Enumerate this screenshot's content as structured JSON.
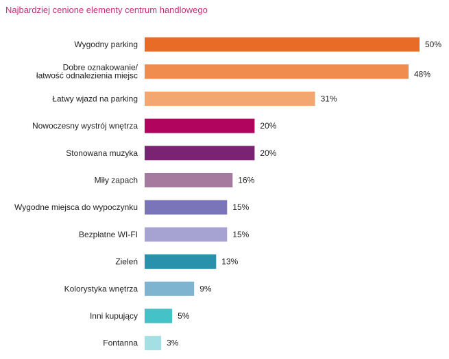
{
  "chart_data": {
    "type": "bar",
    "orientation": "horizontal",
    "title": "Najbardziej cenione elementy centrum handlowego",
    "xlabel": "",
    "ylabel": "",
    "xlim": [
      0,
      50
    ],
    "grid": false,
    "legend": "none",
    "categories": [
      [
        "Wygodny parking"
      ],
      [
        "Dobre oznakowanie/",
        "łatwość odnalezienia miejsc"
      ],
      [
        "Łatwy wjazd na parking"
      ],
      [
        "Nowoczesny wystrój wnętrza"
      ],
      [
        "Stonowana muzyka"
      ],
      [
        "Miły zapach"
      ],
      [
        "Wygodne miejsca do wypoczynku"
      ],
      [
        "Bezpłatne WI-FI"
      ],
      [
        "Zieleń"
      ],
      [
        "Kolorystyka wnętrza"
      ],
      [
        "Inni kupujący"
      ],
      [
        "Fontanna"
      ]
    ],
    "values": [
      50,
      48,
      31,
      20,
      20,
      16,
      15,
      15,
      13,
      9,
      5,
      3
    ],
    "value_labels": [
      "50%",
      "48%",
      "31%",
      "20%",
      "20%",
      "16%",
      "15%",
      "15%",
      "13%",
      "9%",
      "5%",
      "3%"
    ],
    "colors": [
      "#e86c25",
      "#f08c4e",
      "#f3a66f",
      "#b0045f",
      "#7b2373",
      "#a57a9e",
      "#7a75ba",
      "#a6a3d3",
      "#2a91ad",
      "#7fb4d1",
      "#45c2c7",
      "#a4dfe3"
    ]
  }
}
